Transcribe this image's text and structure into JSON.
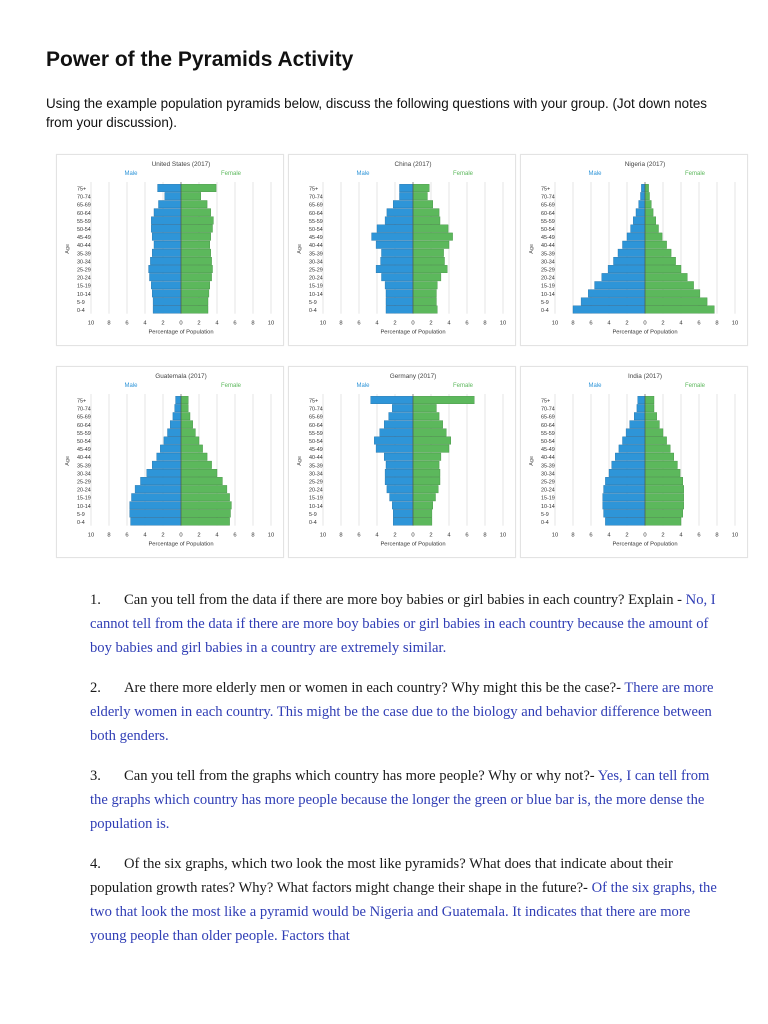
{
  "document": {
    "title": "Power of the Pyramids Activity",
    "intro": "Using the example population pyramids below, discuss the following questions with your group. (Jot down notes from your discussion)."
  },
  "chart_common": {
    "male_label": "Male",
    "female_label": "Female",
    "ylabel": "Age",
    "xlabel": "Percentage of Population",
    "age_groups": [
      "0-4",
      "5-9",
      "10-14",
      "15-19",
      "20-24",
      "25-29",
      "30-34",
      "35-39",
      "40-44",
      "45-49",
      "50-54",
      "55-59",
      "60-64",
      "65-69",
      "70-74",
      "75+"
    ],
    "x_ticks": [
      "10",
      "8",
      "6",
      "4",
      "2",
      "0",
      "2",
      "4",
      "6",
      "8",
      "10"
    ],
    "male_color": "#2e95d8",
    "female_color": "#5cb85c",
    "male_label_color": "#2e95d8",
    "female_label_color": "#5cb85c"
  },
  "chart_data": [
    {
      "type": "bar",
      "title": "United States (2017)",
      "categories": [
        "0-4",
        "5-9",
        "10-14",
        "15-19",
        "20-24",
        "25-29",
        "30-34",
        "35-39",
        "40-44",
        "45-49",
        "50-54",
        "55-59",
        "60-64",
        "65-69",
        "70-74",
        "75+"
      ],
      "series": [
        {
          "name": "Male",
          "values": [
            3.1,
            3.1,
            3.2,
            3.3,
            3.5,
            3.6,
            3.4,
            3.2,
            3.0,
            3.2,
            3.3,
            3.3,
            3.0,
            2.5,
            1.8,
            2.6
          ]
        },
        {
          "name": "Female",
          "values": [
            3.0,
            3.0,
            3.1,
            3.2,
            3.4,
            3.5,
            3.4,
            3.3,
            3.2,
            3.3,
            3.5,
            3.6,
            3.3,
            2.9,
            2.2,
            3.9
          ]
        }
      ],
      "xlim": [
        -10,
        10
      ]
    },
    {
      "title": "China (2017)",
      "type": "bar",
      "categories": [
        "0-4",
        "5-9",
        "10-14",
        "15-19",
        "20-24",
        "25-29",
        "30-34",
        "35-39",
        "40-44",
        "45-49",
        "50-54",
        "55-59",
        "60-64",
        "65-69",
        "70-74",
        "75+"
      ],
      "series": [
        {
          "name": "Male",
          "values": [
            3.0,
            3.0,
            3.0,
            3.1,
            3.5,
            4.1,
            3.6,
            3.5,
            4.1,
            4.6,
            4.0,
            3.1,
            2.9,
            2.2,
            1.5,
            1.5
          ]
        },
        {
          "name": "Female",
          "values": [
            2.7,
            2.6,
            2.6,
            2.7,
            3.1,
            3.8,
            3.5,
            3.4,
            4.0,
            4.4,
            3.9,
            3.0,
            2.9,
            2.2,
            1.6,
            1.8
          ]
        }
      ],
      "xlim": [
        -10,
        10
      ]
    },
    {
      "title": "Nigeria (2017)",
      "type": "bar",
      "categories": [
        "0-4",
        "5-9",
        "10-14",
        "15-19",
        "20-24",
        "25-29",
        "30-34",
        "35-39",
        "40-44",
        "45-49",
        "50-54",
        "55-59",
        "60-64",
        "65-69",
        "70-74",
        "75+"
      ],
      "series": [
        {
          "name": "Male",
          "values": [
            8.0,
            7.1,
            6.3,
            5.6,
            4.8,
            4.1,
            3.5,
            3.0,
            2.5,
            2.0,
            1.6,
            1.3,
            1.0,
            0.7,
            0.5,
            0.4
          ]
        },
        {
          "name": "Female",
          "values": [
            7.7,
            6.9,
            6.1,
            5.4,
            4.7,
            4.0,
            3.4,
            2.9,
            2.4,
            1.9,
            1.5,
            1.2,
            0.9,
            0.7,
            0.5,
            0.4
          ]
        }
      ],
      "xlim": [
        -10,
        10
      ]
    },
    {
      "title": "Guatemala (2017)",
      "type": "bar",
      "categories": [
        "0-4",
        "5-9",
        "10-14",
        "15-19",
        "20-24",
        "25-29",
        "30-34",
        "35-39",
        "40-44",
        "45-49",
        "50-54",
        "55-59",
        "60-64",
        "65-69",
        "70-74",
        "75+"
      ],
      "series": [
        {
          "name": "Male",
          "values": [
            5.6,
            5.7,
            5.7,
            5.5,
            5.1,
            4.5,
            3.8,
            3.2,
            2.7,
            2.3,
            1.9,
            1.5,
            1.2,
            0.9,
            0.7,
            0.6
          ]
        },
        {
          "name": "Female",
          "values": [
            5.4,
            5.5,
            5.6,
            5.4,
            5.1,
            4.6,
            4.0,
            3.4,
            2.9,
            2.4,
            2.0,
            1.6,
            1.3,
            1.0,
            0.8,
            0.8
          ]
        }
      ],
      "xlim": [
        -10,
        10
      ]
    },
    {
      "title": "Germany (2017)",
      "type": "bar",
      "categories": [
        "0-4",
        "5-9",
        "10-14",
        "15-19",
        "20-24",
        "25-29",
        "30-34",
        "35-39",
        "40-44",
        "45-49",
        "50-54",
        "55-59",
        "60-64",
        "65-69",
        "70-74",
        "75+"
      ],
      "series": [
        {
          "name": "Male",
          "values": [
            2.2,
            2.2,
            2.3,
            2.6,
            2.9,
            3.1,
            3.1,
            3.0,
            3.2,
            4.1,
            4.3,
            3.7,
            3.2,
            2.7,
            2.3,
            4.7
          ]
        },
        {
          "name": "Female",
          "values": [
            2.1,
            2.1,
            2.2,
            2.5,
            2.8,
            3.0,
            3.0,
            2.9,
            3.1,
            4.0,
            4.2,
            3.7,
            3.3,
            2.9,
            2.6,
            6.8
          ]
        }
      ],
      "xlim": [
        -10,
        10
      ]
    },
    {
      "title": "India (2017)",
      "type": "bar",
      "categories": [
        "0-4",
        "5-9",
        "10-14",
        "15-19",
        "20-24",
        "25-29",
        "30-34",
        "35-39",
        "40-44",
        "45-49",
        "50-54",
        "55-59",
        "60-64",
        "65-69",
        "70-74",
        "75+"
      ],
      "series": [
        {
          "name": "Male",
          "values": [
            4.4,
            4.6,
            4.7,
            4.7,
            4.6,
            4.4,
            4.0,
            3.7,
            3.3,
            2.9,
            2.5,
            2.1,
            1.7,
            1.2,
            0.9,
            0.8
          ]
        },
        {
          "name": "Female",
          "values": [
            4.0,
            4.2,
            4.3,
            4.3,
            4.3,
            4.2,
            3.9,
            3.6,
            3.2,
            2.8,
            2.4,
            2.0,
            1.6,
            1.3,
            1.0,
            1.0
          ]
        }
      ],
      "xlim": [
        -10,
        10
      ]
    }
  ],
  "questions": [
    {
      "number": "1.",
      "text": "Can you tell from the data if there are more boy babies or girl babies in each country? Explain - ",
      "answer": "No, I cannot tell from the data if there are more boy babies or girl babies in each country because the amount of boy babies and girl babies in a country are extremely similar."
    },
    {
      "number": "2.",
      "text": "Are there more elderly men or women in each country? Why might this be the case?- ",
      "answer": "There are more elderly women in each country. This might be the case due to the biology and behavior difference between both genders."
    },
    {
      "number": "3.",
      "text": "Can you tell from the graphs which country has more people? Why or why not?- ",
      "answer": "Yes, I can tell from the graphs which country has more people because the longer the green or blue bar is, the more dense the population is."
    },
    {
      "number": "4.",
      "text": "Of the six graphs, which two look the most like pyramids? What does that indicate about their population growth rates? Why? What factors might change their shape in the future?- ",
      "answer": "Of the six graphs, the two that look the most like a pyramid would be Nigeria and Guatemala. It indicates that there are more young people than older people. Factors that"
    }
  ]
}
